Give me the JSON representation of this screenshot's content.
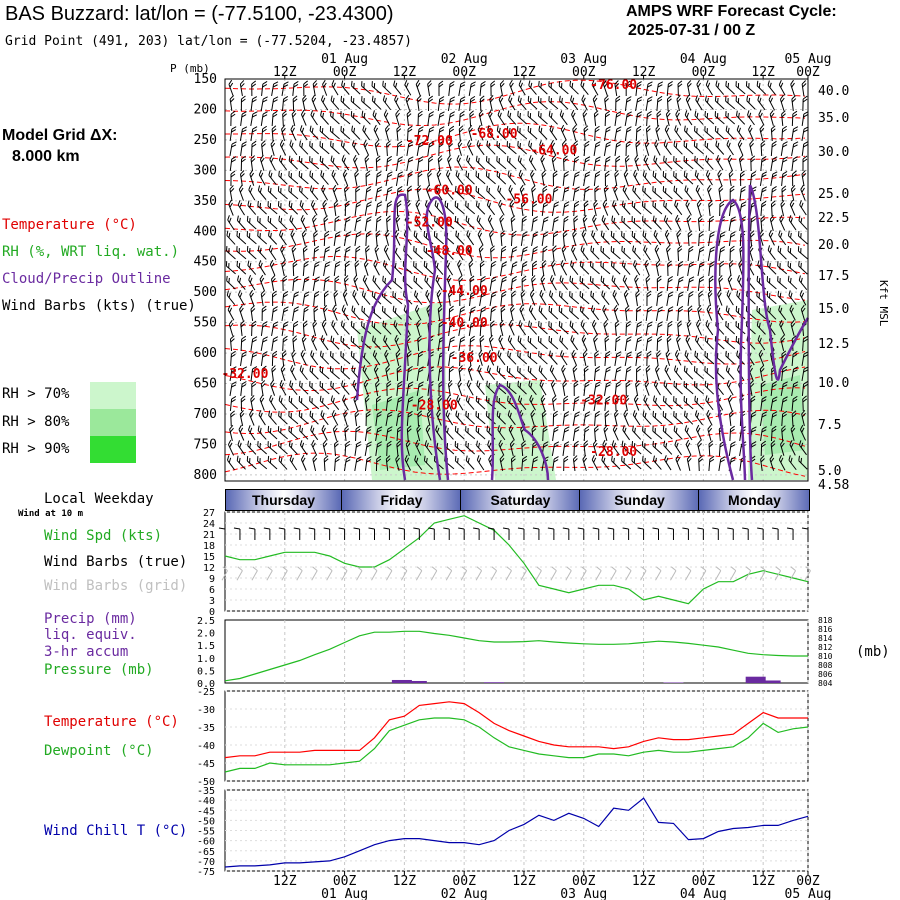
{
  "header": {
    "title": "BAS Buzzard:  lat/lon = (-77.5100, -23.4300)",
    "grid_point": "Grid Point (491, 203) lat/lon = (-77.5204, -23.4857)",
    "model_name": "AMPS WRF Forecast Cycle:",
    "cycle": "2025-07-31 / 00  Z",
    "model_grid_label": "Model Grid ΔX:",
    "model_grid_value": "8.000 km"
  },
  "legend": {
    "temperature": "Temperature (°C)",
    "rh": "RH (%, WRT liq. wat.)",
    "cloud": "Cloud/Precip Outline",
    "wind": "Wind Barbs (kts) (true)",
    "rh70": "RH > 70%",
    "rh80": "RH > 80%",
    "rh90": "RH > 90%",
    "colors": {
      "temperature": "#ff0000",
      "rh": "#22bb22",
      "cloud": "#6a2aa0",
      "rh70": "#ccf6cc",
      "rh80": "#9be89b",
      "rh90": "#33dd33"
    }
  },
  "time_axis": {
    "top_hour_labels": [
      "12Z",
      "00Z",
      "12Z",
      "00Z",
      "12Z",
      "00Z",
      "12Z",
      "00Z",
      "12Z",
      "00Z"
    ],
    "top_date_labels": [
      "01 Aug",
      "02 Aug",
      "03 Aug",
      "04 Aug",
      "05 Aug"
    ],
    "bottom_hour_labels": [
      "12Z",
      "00Z",
      "12Z",
      "00Z",
      "12Z",
      "00Z",
      "12Z",
      "00Z",
      "12Z",
      "00Z"
    ],
    "bottom_date_labels": [
      "01 Aug",
      "02 Aug",
      "03 Aug",
      "04 Aug",
      "05 Aug"
    ]
  },
  "weekday": {
    "title": "Local Weekday",
    "wind_note": "Wind at 10 m",
    "days": [
      "Thursday",
      "Friday",
      "Saturday",
      "Sunday",
      "Monday"
    ]
  },
  "panel_labels": {
    "pressure_unit": "P (mb)",
    "kft": "Kft MSL",
    "wind_spd": "Wind Spd (kts)",
    "wind_barbs_true": "Wind Barbs (true)",
    "wind_barbs_grid": "Wind Barbs (grid)",
    "precip_1": "Precip (mm)",
    "precip_2": "liq. equiv.",
    "precip_3": "3-hr accum",
    "pressure": "Pressure (mb)",
    "mb_unit": "(mb)",
    "temperature": "Temperature (°C)",
    "dewpoint": "Dewpoint (°C)",
    "windchill": "Wind Chill T (°C)"
  },
  "chart_data": [
    {
      "type": "contour",
      "name": "Time-height cross section",
      "y_pressure_ticks": [
        "150",
        "200",
        "250",
        "300",
        "350",
        "400",
        "450",
        "500",
        "550",
        "600",
        "650",
        "700",
        "750",
        "800"
      ],
      "y_pressure_range": [
        150,
        810
      ],
      "y_height_ticks": [
        "40.0",
        "35.0",
        "30.0",
        "25.0",
        "22.5",
        "20.0",
        "17.5",
        "15.0",
        "12.5",
        "10.0",
        "7.5",
        "5.0",
        "4.58"
      ],
      "x_range_hours": [
        0,
        117
      ],
      "temperature_labels": [
        {
          "text": "-76.00",
          "t": 78,
          "p": 160
        },
        {
          "text": "-72.00",
          "t": 41,
          "p": 252
        },
        {
          "text": "-68.00",
          "t": 54,
          "p": 240
        },
        {
          "text": "-64.00",
          "t": 66,
          "p": 267
        },
        {
          "text": "-60.00",
          "t": 45,
          "p": 333
        },
        {
          "text": "-56.00",
          "t": 61,
          "p": 348
        },
        {
          "text": "-52.00",
          "t": 41,
          "p": 386
        },
        {
          "text": "-48.00",
          "t": 45,
          "p": 432
        },
        {
          "text": "-44.00",
          "t": 48,
          "p": 498
        },
        {
          "text": "-40.00",
          "t": 48,
          "p": 551
        },
        {
          "text": "-36.00",
          "t": 50,
          "p": 608
        },
        {
          "text": "-32.00",
          "t": 4,
          "p": 634
        },
        {
          "text": "-28.00",
          "t": 42,
          "p": 686
        },
        {
          "text": "-32.00",
          "t": 76,
          "p": 678
        },
        {
          "text": "-28.00",
          "t": 78,
          "p": 762
        }
      ]
    },
    {
      "type": "line",
      "name": "Surface wind",
      "ylim": [
        0,
        27
      ],
      "y_ticks": [
        0,
        3,
        6,
        9,
        12,
        15,
        18,
        21,
        24,
        27
      ],
      "x_hours": [
        0,
        3,
        6,
        9,
        12,
        15,
        18,
        21,
        24,
        27,
        30,
        33,
        36,
        39,
        42,
        45,
        48,
        51,
        54,
        57,
        60,
        63,
        66,
        69,
        72,
        75,
        78,
        81,
        84,
        87,
        90,
        93,
        96,
        99,
        102,
        105,
        108,
        111,
        114,
        117
      ],
      "series": [
        {
          "values": [
            15,
            14,
            14,
            15,
            16,
            16,
            16,
            15,
            13,
            12,
            12,
            14,
            17,
            20,
            24,
            25,
            26,
            24,
            22,
            18,
            13,
            7,
            6,
            5,
            6,
            7,
            7,
            6,
            3,
            4,
            3,
            2,
            6,
            8,
            8,
            10,
            11,
            10,
            9,
            8
          ]
        }
      ]
    },
    {
      "type": "line",
      "name": "Precip and pressure",
      "ylim_left": [
        0,
        2.5
      ],
      "left_ticks": [
        "2.5",
        "2.0",
        "1.5",
        "1.0",
        "0.5",
        "0.0"
      ],
      "ylim_right": [
        804,
        818
      ],
      "right_ticks": [
        "818",
        "816",
        "814",
        "812",
        "810",
        "808",
        "806",
        "804"
      ],
      "x_hours": [
        0,
        3,
        6,
        9,
        12,
        15,
        18,
        21,
        24,
        27,
        30,
        33,
        36,
        39,
        42,
        45,
        48,
        51,
        54,
        57,
        60,
        63,
        66,
        69,
        72,
        75,
        78,
        81,
        84,
        87,
        90,
        93,
        96,
        99,
        102,
        105,
        108,
        111,
        114,
        117
      ],
      "series": [
        {
          "values": [
            804.5,
            805,
            806,
            807,
            808,
            809,
            810.3,
            811.5,
            813,
            814.5,
            815.3,
            815.3,
            815.5,
            815.5,
            815,
            814.6,
            814,
            813.4,
            813.1,
            813.1,
            813.2,
            813.4,
            813.1,
            812.9,
            812.7,
            812.6,
            812.6,
            812.7,
            813,
            813.3,
            813.1,
            812.8,
            812.4,
            812,
            811.3,
            810.6,
            810.3,
            810.1,
            810,
            810
          ]
        },
        {
          "bars": [
            {
              "x": 35.5,
              "value": 0.12
            },
            {
              "x": 38.5,
              "value": 0.08
            },
            {
              "x": 54,
              "value": 0.03
            },
            {
              "x": 90,
              "value": 0.02
            },
            {
              "x": 106.5,
              "value": 0.25
            },
            {
              "x": 109.5,
              "value": 0.1
            }
          ]
        }
      ]
    },
    {
      "type": "line",
      "name": "Temperature and dewpoint",
      "ylim": [
        -50,
        -25
      ],
      "y_ticks": [
        "-25",
        "-30",
        "-35",
        "-40",
        "-45",
        "-50"
      ],
      "x_hours": [
        0,
        3,
        6,
        9,
        12,
        15,
        18,
        21,
        24,
        27,
        30,
        33,
        36,
        39,
        42,
        45,
        48,
        51,
        54,
        57,
        60,
        63,
        66,
        69,
        72,
        75,
        78,
        81,
        84,
        87,
        90,
        93,
        96,
        99,
        102,
        105,
        108,
        111,
        114,
        117
      ],
      "series": [
        {
          "values": [
            -43.5,
            -43,
            -43,
            -42,
            -42,
            -42,
            -41.5,
            -41.5,
            -41.5,
            -41.5,
            -38,
            -33,
            -32,
            -29,
            -28.5,
            -28,
            -28.5,
            -31,
            -34,
            -36,
            -37.5,
            -39,
            -40,
            -40.5,
            -40.5,
            -40.5,
            -41,
            -40.5,
            -39,
            -38,
            -38.5,
            -38.5,
            -38,
            -37.5,
            -37,
            -34,
            -31,
            -32.5,
            -32.5,
            -32.5
          ]
        },
        {
          "values": [
            -47.5,
            -46.5,
            -46.5,
            -45,
            -45.5,
            -45.5,
            -45.5,
            -45.5,
            -45,
            -44.5,
            -41,
            -36,
            -34.5,
            -33,
            -32.5,
            -32.5,
            -33,
            -35,
            -38,
            -40.5,
            -41.5,
            -42.5,
            -43,
            -43.5,
            -43.5,
            -42.5,
            -42.5,
            -43,
            -42,
            -41.5,
            -42,
            -42,
            -41.5,
            -41,
            -40.5,
            -38,
            -34,
            -36.5,
            -35.5,
            -35
          ]
        }
      ]
    },
    {
      "type": "line",
      "name": "Wind chill",
      "ylim": [
        -75,
        -35
      ],
      "y_ticks": [
        "-35",
        "-40",
        "-45",
        "-50",
        "-55",
        "-60",
        "-65",
        "-70",
        "-75"
      ],
      "x_hours": [
        0,
        3,
        6,
        9,
        12,
        15,
        18,
        21,
        24,
        27,
        30,
        33,
        36,
        39,
        42,
        45,
        48,
        51,
        54,
        57,
        60,
        63,
        66,
        69,
        72,
        75,
        78,
        81,
        84,
        87,
        90,
        93,
        96,
        99,
        102,
        105,
        108,
        111,
        114,
        117
      ],
      "series": [
        {
          "values": [
            -73,
            -72.5,
            -72.5,
            -72,
            -71,
            -71,
            -70.5,
            -70,
            -68,
            -65,
            -62,
            -60,
            -59,
            -59,
            -60,
            -61,
            -61,
            -62,
            -60,
            -55,
            -52,
            -47.5,
            -50,
            -46.5,
            -49,
            -53,
            -44,
            -45,
            -39,
            -51,
            -51.5,
            -59.5,
            -59,
            -55.5,
            -54,
            -53.5,
            -52.5,
            -52.5,
            -50,
            -48
          ]
        }
      ]
    }
  ]
}
